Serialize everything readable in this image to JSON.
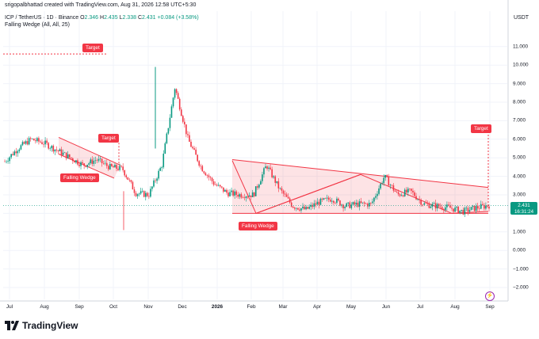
{
  "header": {
    "created": "srigopalbhattad created with TradingView.com, Aug 31, 2026 12:58 UTC+5:30",
    "symbol": "ICP / TetherUS · 1D · Binance",
    "ohlc": {
      "o_label": "O",
      "o": "2.346",
      "h_label": "H",
      "h": "2.435",
      "l_label": "L",
      "l": "2.338",
      "c_label": "C",
      "c": "2.431",
      "chg": "+0.084 (+3.58%)"
    },
    "indicator": "Falling Wedge (All, All, 25)"
  },
  "price_axis": {
    "currency": "USDT",
    "ticks": [
      "11.000",
      "10.000",
      "9.000",
      "8.000",
      "7.000",
      "6.000",
      "5.000",
      "4.000",
      "3.000",
      "2.000",
      "1.000",
      "0.000",
      "−1.000",
      "−2.000"
    ],
    "last_price": "2.431",
    "countdown": "16:31:24"
  },
  "time_axis": {
    "ticks": [
      "Jul",
      "Aug",
      "Sep",
      "Oct",
      "Nov",
      "Dec",
      "2026",
      "Feb",
      "Mar",
      "Apr",
      "May",
      "Jun",
      "Jul",
      "Aug",
      "Sep"
    ]
  },
  "annotations": {
    "target_1": "Target",
    "target_2": "Target",
    "target_3": "Target",
    "wedge_1": "Falling Wedge",
    "wedge_2": "Falling Wedge"
  },
  "colors": {
    "up": "#089981",
    "down": "#f23645",
    "wedge_fill": "#f23645",
    "grid": "#f0f3fa"
  },
  "footer": {
    "brand": "TradingView"
  },
  "chart_data": {
    "type": "candlestick",
    "title": "ICP / TetherUS · 1D · Binance",
    "ylim": [
      -2.5,
      12
    ],
    "x_ticks": [
      "Jul",
      "Aug",
      "Sep",
      "Oct",
      "Nov",
      "Dec",
      "2026",
      "Feb",
      "Mar",
      "Apr",
      "May",
      "Jun",
      "Jul",
      "Aug",
      "Sep"
    ],
    "close_series": [
      {
        "x": "Jul",
        "y": 4.8
      },
      {
        "x": "Jul",
        "y": 5.5
      },
      {
        "x": "Jul",
        "y": 6.0
      },
      {
        "x": "Aug",
        "y": 5.8
      },
      {
        "x": "Aug",
        "y": 5.4
      },
      {
        "x": "Aug",
        "y": 5.0
      },
      {
        "x": "Sep",
        "y": 4.6
      },
      {
        "x": "Sep",
        "y": 4.9
      },
      {
        "x": "Sep",
        "y": 4.5
      },
      {
        "x": "Oct",
        "y": 4.4
      },
      {
        "x": "Oct",
        "y": 3.1
      },
      {
        "x": "Oct",
        "y": 3.0
      },
      {
        "x": "Nov",
        "y": 4.6
      },
      {
        "x": "Nov",
        "y": 8.8
      },
      {
        "x": "Nov",
        "y": 6.0
      },
      {
        "x": "Nov",
        "y": 4.5
      },
      {
        "x": "Dec",
        "y": 3.6
      },
      {
        "x": "Dec",
        "y": 3.1
      },
      {
        "x": "Dec",
        "y": 3.0
      },
      {
        "x": "2026",
        "y": 3.0
      },
      {
        "x": "2026",
        "y": 4.6
      },
      {
        "x": "2026",
        "y": 3.3
      },
      {
        "x": "Feb",
        "y": 2.4
      },
      {
        "x": "Feb",
        "y": 2.2
      },
      {
        "x": "Mar",
        "y": 2.6
      },
      {
        "x": "Mar",
        "y": 2.8
      },
      {
        "x": "Apr",
        "y": 2.4
      },
      {
        "x": "Apr",
        "y": 2.5
      },
      {
        "x": "May",
        "y": 2.5
      },
      {
        "x": "May",
        "y": 4.0
      },
      {
        "x": "May",
        "y": 3.0
      },
      {
        "x": "Jun",
        "y": 3.2
      },
      {
        "x": "Jun",
        "y": 2.5
      },
      {
        "x": "Jul",
        "y": 2.4
      },
      {
        "x": "Jul",
        "y": 2.3
      },
      {
        "x": "Aug",
        "y": 2.1
      },
      {
        "x": "Aug",
        "y": 2.3
      },
      {
        "x": "Sep",
        "y": 2.431
      }
    ],
    "patterns": [
      {
        "name": "Falling Wedge",
        "upper": [
          6.1,
          4.6
        ],
        "lower": [
          5.2,
          3.9
        ],
        "target": 5.9
      },
      {
        "name": "Falling Wedge",
        "upper": [
          4.9,
          3.3
        ],
        "lower": [
          2.0,
          2.0
        ],
        "target": 6.3
      }
    ],
    "target_level": 10.6,
    "last_price": 2.431
  }
}
